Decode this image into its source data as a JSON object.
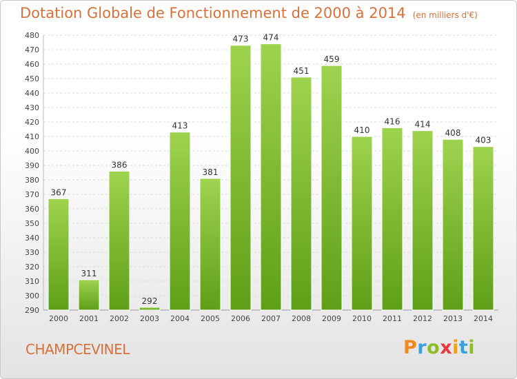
{
  "chart_data": {
    "type": "bar",
    "title": "Dotation Globale de Fonctionnement de 2000 à 2014",
    "subtitle": "(en milliers d'€)",
    "categories": [
      "2000",
      "2001",
      "2002",
      "2003",
      "2004",
      "2005",
      "2006",
      "2007",
      "2008",
      "2009",
      "2010",
      "2011",
      "2012",
      "2013",
      "2014"
    ],
    "values": [
      367,
      311,
      386,
      292,
      413,
      381,
      473,
      474,
      451,
      459,
      410,
      416,
      414,
      408,
      403
    ],
    "ylim": [
      290,
      480
    ],
    "ytick_step": 10,
    "grid": true,
    "bar_color": "#7cbf2e",
    "xlabel": "",
    "ylabel": ""
  },
  "commune": "CHAMPCEVINEL",
  "logo": {
    "text": "Proxiti",
    "letter_colors": [
      "#f08a1c",
      "#3aa0dc",
      "#8cbf26",
      "#e8383d",
      "#f0a020",
      "#3aa0dc",
      "#8cbf26"
    ]
  }
}
